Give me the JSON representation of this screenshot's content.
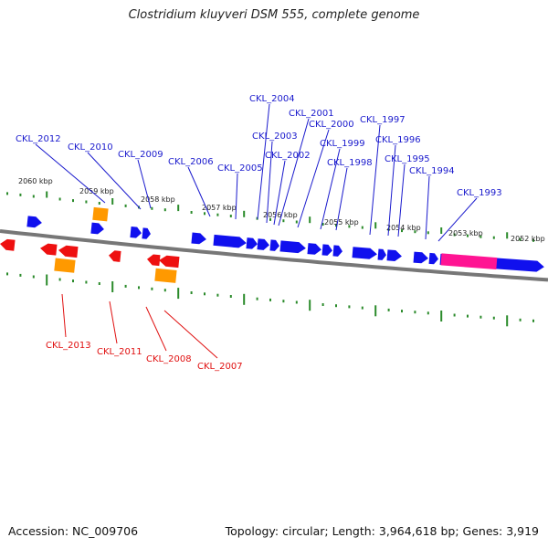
{
  "title": "Clostridium kluyveri DSM 555, complete genome",
  "footer": {
    "accession": "Accession: NC_009706",
    "summary": "Topology: circular; Length: 3,964,618 bp; Genes: 3,919"
  },
  "colors": {
    "backbone": "#777777",
    "forward_gene": "#1010ee",
    "reverse_gene": "#ee1010",
    "rna_orange": "#ff9900",
    "rna_pink": "#ff1493",
    "blue_label": "#1a1acd",
    "red_label": "#e01010",
    "tick": "#2a8a2a"
  },
  "scale_labels": [
    "2060 kbp",
    "2059 kbp",
    "2058 kbp",
    "2057 kbp",
    "2056 kbp",
    "2055 kbp",
    "2054 kbp",
    "2053 kbp",
    "2052 kbp"
  ],
  "gene_labels_top": [
    "CKL_2004",
    "CKL_2001",
    "CKL_2000",
    "CKL_1997",
    "CKL_2003",
    "CKL_1996",
    "CKL_1999",
    "CKL_2012",
    "CKL_2010",
    "CKL_2002",
    "CKL_1998",
    "CKL_2009",
    "CKL_1995",
    "CKL_2006",
    "CKL_2005",
    "CKL_1994",
    "CKL_1993"
  ],
  "gene_labels_bottom": [
    "CKL_2013",
    "CKL_2011",
    "CKL_2008",
    "CKL_2007"
  ]
}
